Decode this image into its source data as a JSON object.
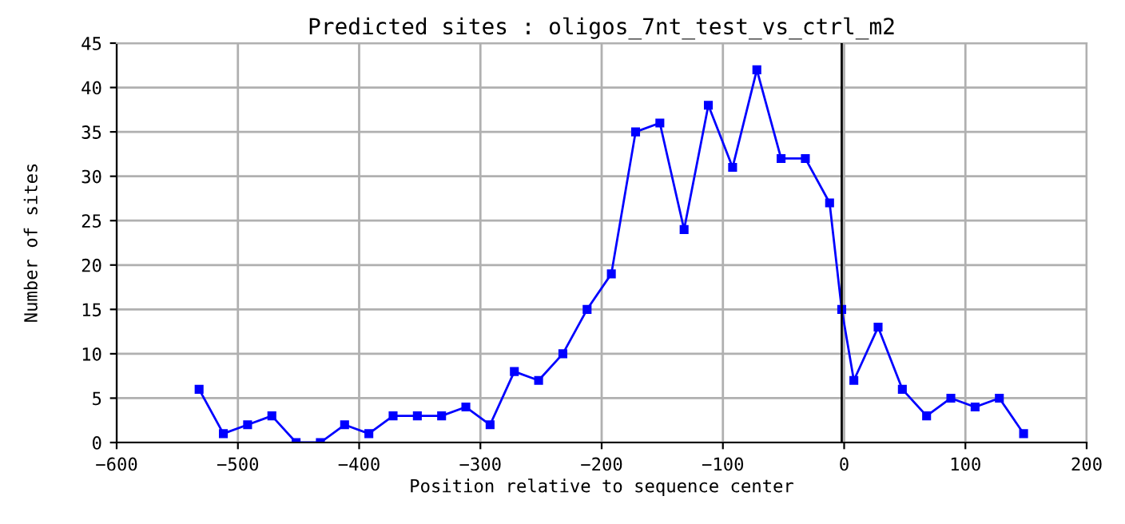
{
  "chart_data": {
    "type": "line",
    "title": "Predicted sites : oligos_7nt_test_vs_ctrl_m2",
    "xlabel": "Position relative to sequence center",
    "ylabel": "Number of sites",
    "x": [
      -532,
      -512,
      -492,
      -472,
      -452,
      -432,
      -412,
      -392,
      -372,
      -352,
      -332,
      -312,
      -292,
      -272,
      -252,
      -232,
      -212,
      -192,
      -172,
      -152,
      -132,
      -112,
      -92,
      -72,
      -52,
      -32,
      -12,
      -2,
      8,
      28,
      48,
      68,
      88,
      108,
      128,
      148
    ],
    "series": [
      {
        "color": "#0000ff",
        "values": [
          6,
          1,
          2,
          3,
          0,
          0,
          2,
          1,
          3,
          3,
          3,
          4,
          2,
          8,
          7,
          10,
          15,
          19,
          35,
          36,
          24,
          38,
          31,
          42,
          32,
          32,
          27,
          15,
          7,
          13,
          6,
          3,
          5,
          4,
          5,
          1
        ]
      }
    ],
    "xlim": [
      -600,
      200
    ],
    "xticks": [
      {
        "value": -600,
        "label": "−600"
      },
      {
        "value": -500,
        "label": "−500"
      },
      {
        "value": -400,
        "label": "−400"
      },
      {
        "value": -300,
        "label": "−300"
      },
      {
        "value": -200,
        "label": "−200"
      },
      {
        "value": -100,
        "label": "−100"
      },
      0,
      100,
      200
    ],
    "ylim": [
      0,
      45
    ],
    "yticks": [
      0,
      5,
      10,
      15,
      20,
      25,
      30,
      35,
      40,
      45
    ],
    "ref_lines": [
      {
        "axis": "x",
        "value": -2,
        "color": "#000000"
      }
    ],
    "grid": true,
    "marker": "square",
    "line_style": "solid",
    "legend": false
  }
}
